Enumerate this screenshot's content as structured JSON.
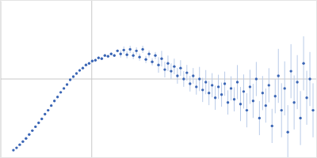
{
  "chart_data": {
    "type": "scatter",
    "color": "#3b66b5",
    "grid": true,
    "tick_labels": false,
    "xlim": [
      0,
      6
    ],
    "ylim": [
      0,
      2.2
    ],
    "xticks": [
      1.73
    ],
    "yticks": [
      1.1
    ],
    "x": [
      0.24,
      0.3,
      0.36,
      0.42,
      0.48,
      0.54,
      0.6,
      0.66,
      0.72,
      0.78,
      0.84,
      0.9,
      0.96,
      1.02,
      1.08,
      1.14,
      1.2,
      1.26,
      1.32,
      1.38,
      1.44,
      1.5,
      1.56,
      1.62,
      1.68,
      1.74,
      1.8,
      1.86,
      1.92,
      1.98,
      2.04,
      2.1,
      2.16,
      2.22,
      2.28,
      2.34,
      2.4,
      2.46,
      2.52,
      2.58,
      2.64,
      2.7,
      2.76,
      2.82,
      2.88,
      2.94,
      3.0,
      3.06,
      3.12,
      3.18,
      3.24,
      3.3,
      3.36,
      3.42,
      3.48,
      3.54,
      3.6,
      3.66,
      3.72,
      3.78,
      3.84,
      3.9,
      3.96,
      4.02,
      4.08,
      4.14,
      4.2,
      4.26,
      4.32,
      4.38,
      4.44,
      4.5,
      4.56,
      4.62,
      4.68,
      4.74,
      4.8,
      4.86,
      4.92,
      4.98,
      5.04,
      5.1,
      5.16,
      5.22,
      5.28,
      5.34,
      5.4,
      5.46,
      5.52,
      5.58,
      5.64,
      5.7,
      5.76,
      5.82,
      5.88,
      5.94
    ],
    "values": [
      0.099,
      0.132,
      0.176,
      0.22,
      0.264,
      0.319,
      0.374,
      0.429,
      0.484,
      0.539,
      0.605,
      0.66,
      0.726,
      0.792,
      0.847,
      0.913,
      0.968,
      1.023,
      1.089,
      1.133,
      1.177,
      1.221,
      1.254,
      1.298,
      1.32,
      1.353,
      1.364,
      1.397,
      1.386,
      1.43,
      1.419,
      1.452,
      1.43,
      1.496,
      1.452,
      1.507,
      1.441,
      1.518,
      1.43,
      1.496,
      1.408,
      1.518,
      1.375,
      1.452,
      1.342,
      1.43,
      1.298,
      1.386,
      1.232,
      1.32,
      1.21,
      1.276,
      1.144,
      1.254,
      1.1,
      1.188,
      1.034,
      1.144,
      0.99,
      1.1,
      0.946,
      1.056,
      0.902,
      1.012,
      0.836,
      0.99,
      0.88,
      1.034,
      0.77,
      0.968,
      0.814,
      1.056,
      0.748,
      0.924,
      0.66,
      0.99,
      0.792,
      1.1,
      0.55,
      0.902,
      0.726,
      1.012,
      0.44,
      0.858,
      1.144,
      0.66,
      0.968,
      0.352,
      1.21,
      0.77,
      1.056,
      0.55,
      1.32,
      0.836,
      1.1,
      0.66
    ],
    "errors": [
      0.01,
      0.01,
      0.01,
      0.01,
      0.01,
      0.01,
      0.01,
      0.01,
      0.01,
      0.01,
      0.01,
      0.01,
      0.01,
      0.01,
      0.01,
      0.01,
      0.01,
      0.01,
      0.01,
      0.01,
      0.01,
      0.02,
      0.02,
      0.02,
      0.02,
      0.02,
      0.02,
      0.02,
      0.02,
      0.02,
      0.02,
      0.02,
      0.02,
      0.02,
      0.05,
      0.05,
      0.05,
      0.05,
      0.05,
      0.05,
      0.05,
      0.05,
      0.05,
      0.05,
      0.05,
      0.05,
      0.11,
      0.11,
      0.11,
      0.11,
      0.11,
      0.11,
      0.11,
      0.11,
      0.11,
      0.11,
      0.11,
      0.11,
      0.11,
      0.17,
      0.17,
      0.17,
      0.17,
      0.17,
      0.17,
      0.17,
      0.17,
      0.17,
      0.17,
      0.17,
      0.17,
      0.24,
      0.24,
      0.24,
      0.24,
      0.24,
      0.24,
      0.24,
      0.24,
      0.24,
      0.24,
      0.24,
      0.24,
      0.24,
      0.38,
      0.38,
      0.38,
      0.38,
      0.38,
      0.38,
      0.38,
      0.38,
      0.38,
      0.38,
      0.38,
      0.38
    ]
  }
}
